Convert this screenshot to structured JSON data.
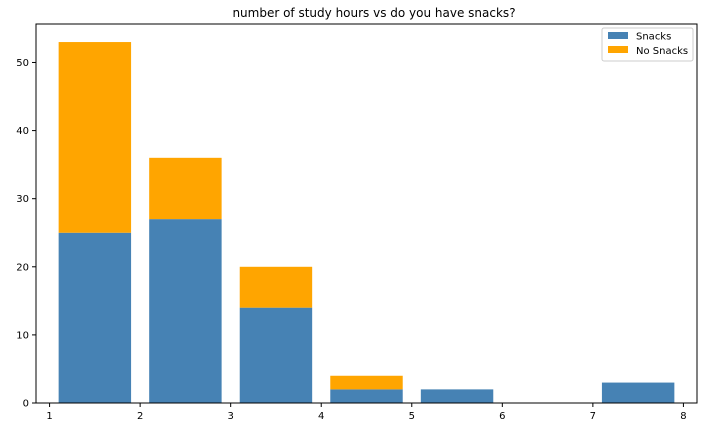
{
  "chart_data": {
    "type": "bar",
    "stacked": true,
    "title": "number of study hours vs do you have snacks?",
    "xlabel": "",
    "ylabel": "",
    "xlim": [
      0.85,
      8.15
    ],
    "ylim": [
      0,
      55.65
    ],
    "xticks": [
      1,
      2,
      3,
      4,
      5,
      6,
      7,
      8
    ],
    "yticks": [
      0,
      10,
      20,
      30,
      40,
      50
    ],
    "bar_width": 0.8,
    "x": [
      1.5,
      2.5,
      3.5,
      4.5,
      5.5,
      6.5,
      7.5
    ],
    "series": [
      {
        "name": "Snacks",
        "color": "#4682b4",
        "values": [
          25,
          27,
          14,
          2,
          2,
          0,
          3
        ]
      },
      {
        "name": "No Snacks",
        "color": "#ffa500",
        "values": [
          28,
          9,
          6,
          2,
          0,
          0,
          0
        ]
      }
    ],
    "legend_position": "top-right",
    "grid": false
  }
}
